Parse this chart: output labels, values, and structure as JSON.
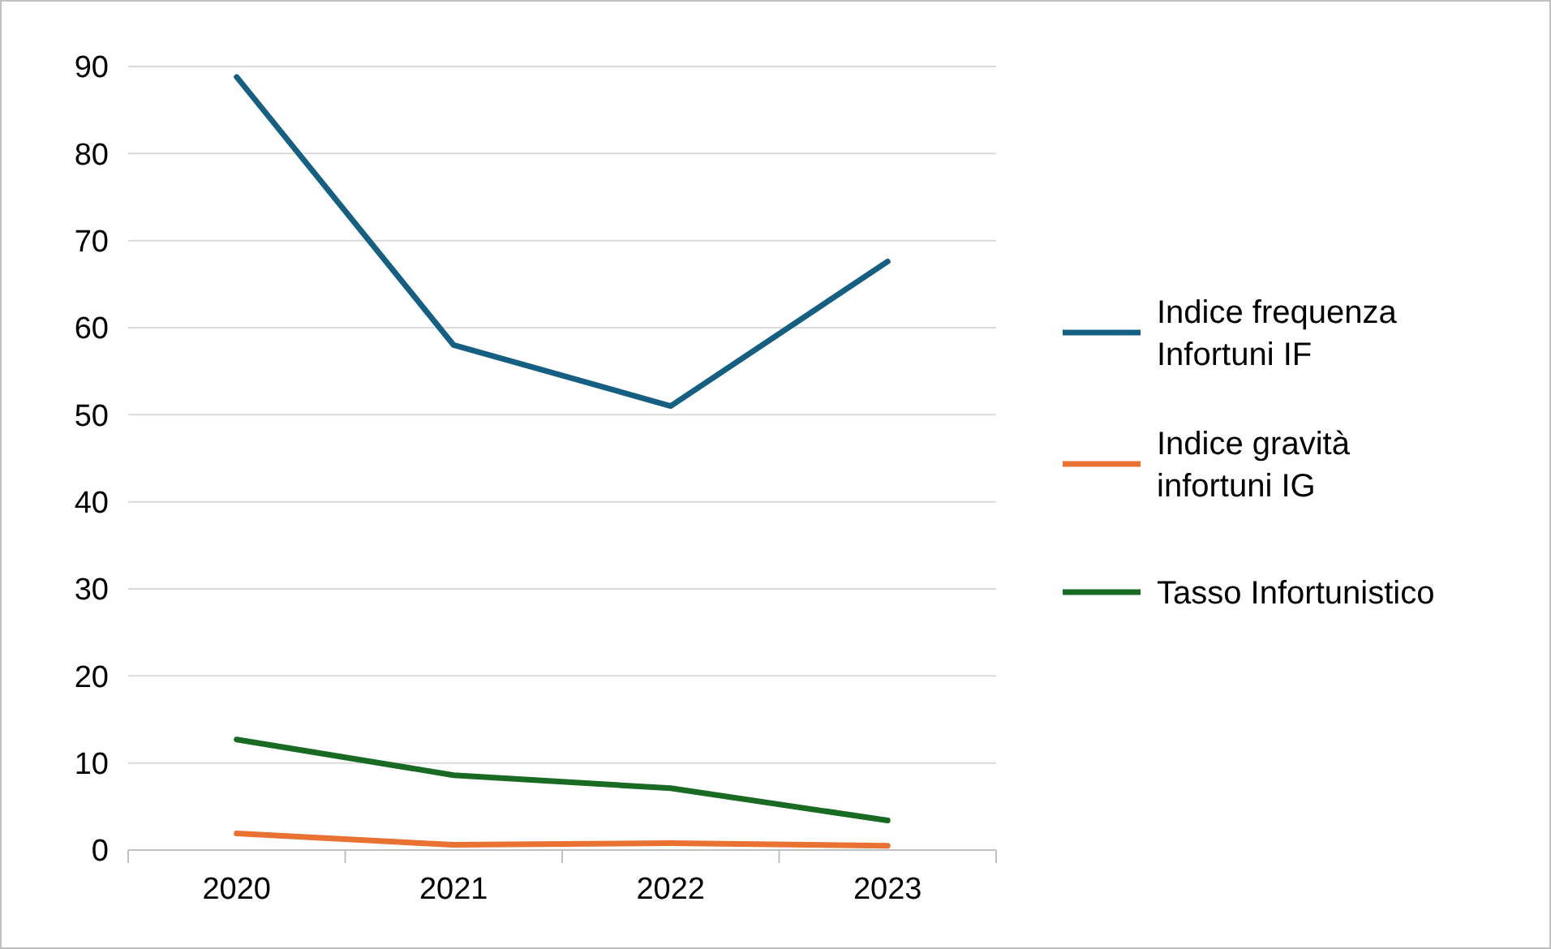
{
  "chart_data": {
    "type": "line",
    "categories": [
      "2020",
      "2021",
      "2022",
      "2023"
    ],
    "series": [
      {
        "name": "Indice frequenza Infortuni IF",
        "color": "#156082",
        "values": [
          88.8,
          58,
          51,
          67.6
        ]
      },
      {
        "name": "Indice gravità infortuni IG",
        "color": "#e97132",
        "values": [
          1.9,
          0.6,
          0.8,
          0.5
        ]
      },
      {
        "name": "Tasso Infortunistico",
        "color": "#196b24",
        "values": [
          12.7,
          8.6,
          7.1,
          3.4
        ]
      }
    ],
    "ylim": [
      0,
      90
    ],
    "yticks": [
      0,
      10,
      20,
      30,
      40,
      50,
      60,
      70,
      80,
      90
    ],
    "grid": "y",
    "legend": "right",
    "marker": "none",
    "line_style": "solid"
  }
}
